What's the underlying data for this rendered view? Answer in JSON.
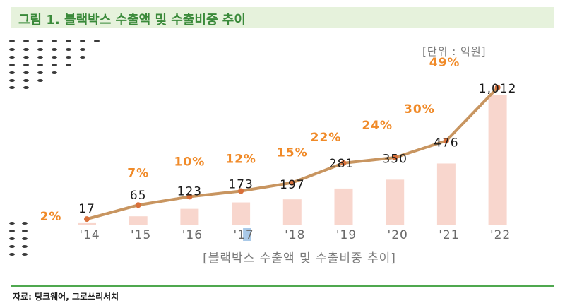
{
  "title": "그림 1. 블랙박스 수출액 및 수출비중 추이",
  "unit": "[단위 : 억원]",
  "source": "자료: 팅크웨어, 그로쓰리서치",
  "chart_data": {
    "type": "bar",
    "xlabel": "[블랙박스 수출액 및 수출비중 추이]",
    "categories": [
      "'14",
      "'15",
      "'16",
      "'17",
      "'18",
      "'19",
      "'20",
      "'21",
      "'22"
    ],
    "bar_values": [
      17,
      65,
      123,
      173,
      197,
      281,
      350,
      476,
      1012
    ],
    "bar_labels": [
      "17",
      "65",
      "123",
      "173",
      "197",
      "281",
      "350",
      "476",
      "1,012"
    ],
    "share_values": [
      2,
      7,
      10,
      12,
      15,
      22,
      24,
      30,
      49
    ],
    "share_labels": [
      "2%",
      "7%",
      "10%",
      "12%",
      "15%",
      "22%",
      "24%",
      "30%",
      "49%"
    ],
    "ylim": [
      0,
      1100
    ],
    "share_ylim": [
      0,
      50
    ],
    "colors": {
      "bar": "#f8d6cd",
      "line": "#c89560",
      "marker": "#d9703a",
      "percent": "#f08a28",
      "value": "#1a1a1a",
      "tick": "#6a6a6a"
    }
  }
}
